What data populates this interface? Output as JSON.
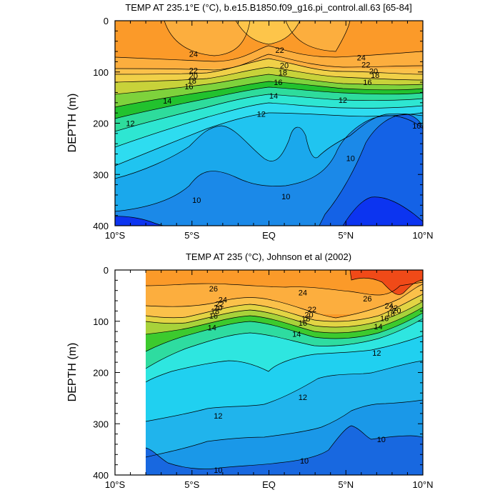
{
  "chart_data": [
    {
      "type": "contour",
      "title": "TEMP AT 235.1°E (°C), b.e15.B1850.f09_g16.pi_control.all.63 [65-84]",
      "ylabel": "DEPTH (m)",
      "x_range": [
        -10,
        10
      ],
      "y_range": [
        0,
        400
      ],
      "y_inverted": true,
      "x_ticks": [
        {
          "value": -10,
          "label": "10°S"
        },
        {
          "value": -5,
          "label": "5°S"
        },
        {
          "value": 0,
          "label": "EQ"
        },
        {
          "value": 5,
          "label": "5°N"
        },
        {
          "value": 10,
          "label": "10°N"
        }
      ],
      "y_ticks": [
        0,
        100,
        200,
        300,
        400
      ],
      "data_lat_range": [
        -10,
        10
      ],
      "labeled_contours": [
        {
          "label": "24",
          "lat": -4.9,
          "depth": 65
        },
        {
          "label": "22",
          "lat": 0.7,
          "depth": 57
        },
        {
          "label": "24",
          "lat": 6.0,
          "depth": 72
        },
        {
          "label": "22",
          "lat": -4.9,
          "depth": 97
        },
        {
          "label": "20",
          "lat": 1.0,
          "depth": 87
        },
        {
          "label": "22",
          "lat": 6.3,
          "depth": 86
        },
        {
          "label": "20",
          "lat": -4.9,
          "depth": 107
        },
        {
          "label": "18",
          "lat": 0.9,
          "depth": 101
        },
        {
          "label": "20",
          "lat": 6.8,
          "depth": 98
        },
        {
          "label": "18",
          "lat": -5.0,
          "depth": 117
        },
        {
          "label": "18",
          "lat": 6.9,
          "depth": 106
        },
        {
          "label": "16",
          "lat": -5.2,
          "depth": 128
        },
        {
          "label": "16",
          "lat": 0.6,
          "depth": 120
        },
        {
          "label": "16",
          "lat": 6.4,
          "depth": 120
        },
        {
          "label": "14",
          "lat": -6.6,
          "depth": 156
        },
        {
          "label": "14",
          "lat": 0.3,
          "depth": 146
        },
        {
          "label": "12",
          "lat": 4.8,
          "depth": 155
        },
        {
          "label": "12",
          "lat": -9.0,
          "depth": 200
        },
        {
          "label": "12",
          "lat": -0.5,
          "depth": 182
        },
        {
          "label": "10",
          "lat": 9.6,
          "depth": 205
        },
        {
          "label": "10",
          "lat": 5.3,
          "depth": 268
        },
        {
          "label": "10",
          "lat": 1.1,
          "depth": 343
        },
        {
          "label": "10",
          "lat": -4.7,
          "depth": 350
        }
      ]
    },
    {
      "type": "contour",
      "title": "TEMP AT 235 (°C), Johnson et al (2002)",
      "ylabel": "DEPTH (m)",
      "x_range": [
        -10,
        10
      ],
      "y_range": [
        0,
        400
      ],
      "y_inverted": true,
      "x_ticks": [
        {
          "value": -10,
          "label": "10°S"
        },
        {
          "value": -5,
          "label": "5°S"
        },
        {
          "value": 0,
          "label": "EQ"
        },
        {
          "value": 5,
          "label": "5°N"
        },
        {
          "value": 10,
          "label": "10°N"
        }
      ],
      "y_ticks": [
        0,
        100,
        200,
        300,
        400
      ],
      "data_lat_range": [
        -8,
        10
      ],
      "labeled_contours": [
        {
          "label": "26",
          "lat": -3.6,
          "depth": 36
        },
        {
          "label": "24",
          "lat": 2.2,
          "depth": 44
        },
        {
          "label": "26",
          "lat": 6.4,
          "depth": 56
        },
        {
          "label": "24",
          "lat": -3.0,
          "depth": 58
        },
        {
          "label": "22",
          "lat": 2.8,
          "depth": 77
        },
        {
          "label": "24",
          "lat": 7.8,
          "depth": 70
        },
        {
          "label": "22",
          "lat": -3.2,
          "depth": 66
        },
        {
          "label": "20",
          "lat": 2.6,
          "depth": 87
        },
        {
          "label": "22",
          "lat": 8.1,
          "depth": 74
        },
        {
          "label": "20",
          "lat": -3.3,
          "depth": 73
        },
        {
          "label": "18",
          "lat": 2.4,
          "depth": 95
        },
        {
          "label": "20",
          "lat": 8.3,
          "depth": 79
        },
        {
          "label": "18",
          "lat": -3.5,
          "depth": 80
        },
        {
          "label": "16",
          "lat": 2.2,
          "depth": 103
        },
        {
          "label": "18",
          "lat": 7.9,
          "depth": 85
        },
        {
          "label": "16",
          "lat": -3.6,
          "depth": 89
        },
        {
          "label": "16",
          "lat": 7.5,
          "depth": 94
        },
        {
          "label": "14",
          "lat": -3.7,
          "depth": 112
        },
        {
          "label": "14",
          "lat": 1.8,
          "depth": 125
        },
        {
          "label": "14",
          "lat": 7.1,
          "depth": 110
        },
        {
          "label": "12",
          "lat": 7.0,
          "depth": 162
        },
        {
          "label": "12",
          "lat": 2.2,
          "depth": 248
        },
        {
          "label": "12",
          "lat": -3.3,
          "depth": 284
        },
        {
          "label": "10",
          "lat": 7.3,
          "depth": 330
        },
        {
          "label": "10",
          "lat": 2.3,
          "depth": 372
        },
        {
          "label": "10",
          "lat": -3.3,
          "depth": 390
        }
      ]
    }
  ]
}
